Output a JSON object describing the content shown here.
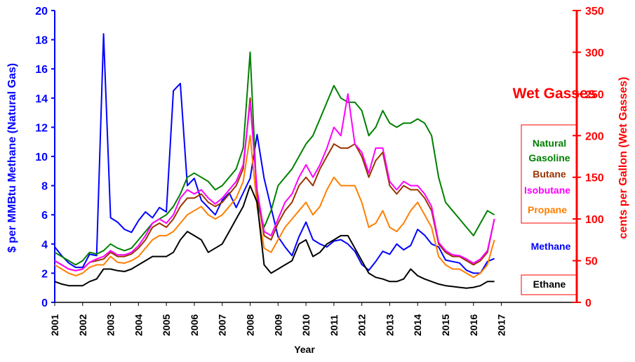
{
  "chart_data": {
    "type": "line",
    "x_label": "Year",
    "y_label": "$ per MMBtu Methane (Natural Gas)",
    "y2_label": "cents per Gallon (Wet Gasses)",
    "legend_title": "Wet Gasses",
    "x": [
      2001,
      2001.25,
      2001.5,
      2001.75,
      2002,
      2002.25,
      2002.5,
      2002.75,
      2003,
      2003.25,
      2003.5,
      2003.75,
      2004,
      2004.25,
      2004.5,
      2004.75,
      2005,
      2005.25,
      2005.5,
      2005.75,
      2006,
      2006.25,
      2006.5,
      2006.75,
      2007,
      2007.25,
      2007.5,
      2007.75,
      2008,
      2008.25,
      2008.5,
      2008.75,
      2009,
      2009.25,
      2009.5,
      2009.75,
      2010,
      2010.25,
      2010.5,
      2010.75,
      2011,
      2011.25,
      2011.5,
      2011.75,
      2012,
      2012.25,
      2012.5,
      2012.75,
      2013,
      2013.25,
      2013.5,
      2013.75,
      2014,
      2014.25,
      2014.5,
      2014.75,
      2015,
      2015.25,
      2015.5,
      2015.75,
      2016,
      2016.25,
      2016.5,
      2016.75
    ],
    "xlim": [
      2001,
      2019.7
    ],
    "xticks": [
      2001,
      2002,
      2003,
      2004,
      2005,
      2006,
      2007,
      2008,
      2009,
      2010,
      2011,
      2012,
      2013,
      2014,
      2015,
      2016,
      2017
    ],
    "ylim": [
      0,
      20
    ],
    "yticks": [
      0,
      2,
      4,
      6,
      8,
      10,
      12,
      14,
      16,
      18,
      20
    ],
    "y2lim": [
      0,
      350
    ],
    "y2ticks": [
      0,
      50,
      100,
      150,
      200,
      250,
      300,
      350
    ],
    "series": [
      {
        "name": "Methane",
        "color": "#0000ff",
        "axis": "y",
        "values": [
          3.8,
          3.2,
          2.7,
          2.4,
          2.4,
          3.3,
          3.2,
          18.4,
          5.8,
          5.5,
          5.0,
          4.8,
          5.6,
          6.2,
          5.8,
          6.5,
          6.2,
          14.5,
          15.0,
          8.0,
          8.5,
          7.0,
          6.5,
          6.0,
          7.0,
          7.5,
          6.5,
          7.5,
          8.5,
          11.5,
          8.5,
          6.5,
          4.5,
          3.8,
          3.2,
          4.5,
          5.5,
          4.3,
          4.0,
          3.8,
          4.2,
          4.3,
          4.0,
          3.5,
          2.6,
          2.2,
          2.8,
          3.5,
          3.3,
          4.0,
          3.6,
          3.9,
          5.0,
          4.6,
          4.0,
          3.8,
          2.9,
          2.8,
          2.7,
          2.2,
          2.0,
          2.0,
          2.8,
          3.0
        ]
      },
      {
        "name": "Natural Gasoline",
        "color": "#008000",
        "axis": "y2",
        "values": [
          60,
          55,
          50,
          45,
          50,
          60,
          58,
          62,
          70,
          65,
          62,
          65,
          75,
          85,
          95,
          100,
          105,
          115,
          130,
          150,
          155,
          150,
          145,
          135,
          140,
          150,
          160,
          185,
          300,
          120,
          90,
          110,
          140,
          150,
          160,
          175,
          190,
          200,
          220,
          240,
          260,
          245,
          240,
          240,
          230,
          200,
          210,
          230,
          215,
          210,
          215,
          215,
          220,
          215,
          200,
          150,
          120,
          110,
          100,
          90,
          80,
          95,
          110,
          105
        ]
      },
      {
        "name": "Butane",
        "color": "#993300",
        "axis": "y2",
        "values": [
          50,
          45,
          40,
          38,
          40,
          48,
          50,
          52,
          60,
          55,
          55,
          58,
          65,
          75,
          90,
          95,
          90,
          100,
          115,
          125,
          125,
          130,
          120,
          115,
          120,
          130,
          140,
          160,
          245,
          130,
          80,
          75,
          95,
          110,
          120,
          140,
          150,
          140,
          160,
          175,
          190,
          185,
          185,
          190,
          175,
          150,
          170,
          180,
          140,
          130,
          140,
          135,
          135,
          125,
          110,
          70,
          60,
          55,
          55,
          50,
          45,
          50,
          60,
          100
        ]
      },
      {
        "name": "Isobutane",
        "color": "#ff00ff",
        "axis": "y2",
        "values": [
          50,
          45,
          40,
          38,
          40,
          48,
          52,
          55,
          62,
          57,
          57,
          60,
          68,
          80,
          95,
          100,
          95,
          105,
          125,
          135,
          130,
          135,
          125,
          118,
          125,
          135,
          145,
          165,
          240,
          135,
          85,
          80,
          100,
          120,
          130,
          150,
          165,
          150,
          165,
          185,
          210,
          200,
          250,
          190,
          180,
          155,
          185,
          185,
          145,
          135,
          145,
          140,
          140,
          130,
          115,
          72,
          62,
          57,
          56,
          52,
          47,
          52,
          62,
          100
        ]
      },
      {
        "name": "Propane",
        "color": "#ff7f00",
        "axis": "y2",
        "values": [
          45,
          40,
          35,
          32,
          35,
          42,
          45,
          45,
          55,
          48,
          47,
          50,
          55,
          65,
          75,
          80,
          80,
          85,
          95,
          105,
          110,
          115,
          105,
          100,
          105,
          115,
          125,
          145,
          200,
          115,
          65,
          60,
          75,
          90,
          100,
          110,
          120,
          105,
          115,
          135,
          150,
          140,
          140,
          140,
          120,
          90,
          95,
          110,
          90,
          85,
          95,
          110,
          120,
          105,
          90,
          55,
          45,
          40,
          40,
          35,
          30,
          35,
          45,
          75
        ]
      },
      {
        "name": "Ethane",
        "color": "#000000",
        "axis": "y2",
        "values": [
          25,
          22,
          20,
          20,
          20,
          25,
          28,
          40,
          40,
          38,
          37,
          40,
          45,
          50,
          55,
          55,
          55,
          60,
          75,
          85,
          80,
          75,
          60,
          65,
          70,
          85,
          100,
          115,
          140,
          120,
          45,
          35,
          40,
          45,
          50,
          70,
          75,
          55,
          60,
          70,
          75,
          80,
          80,
          65,
          50,
          35,
          30,
          28,
          25,
          25,
          28,
          40,
          32,
          28,
          25,
          22,
          20,
          19,
          18,
          17,
          18,
          20,
          25,
          25
        ]
      }
    ]
  }
}
